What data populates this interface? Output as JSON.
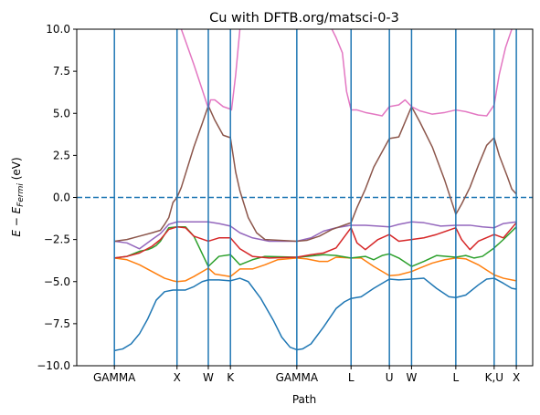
{
  "chart_data": {
    "type": "line",
    "title": "Cu with DFTB.org/matsci-0-3",
    "xlabel": "Path",
    "ylabel_main": "E − E",
    "ylabel_sub": "Fermi",
    "ylabel_unit": " (eV)",
    "ylim": [
      -10.0,
      10.0
    ],
    "xlim": [
      0,
      1
    ],
    "yticks": [
      "−10.0",
      "−7.5",
      "−5.0",
      "−2.5",
      "0.0",
      "2.5",
      "5.0",
      "7.5",
      "10.0"
    ],
    "ytick_values": [
      -10,
      -7.5,
      -5,
      -2.5,
      0,
      2.5,
      5,
      7.5,
      10
    ],
    "kpoint_labels": [
      "GAMMA",
      "X",
      "W",
      "K",
      "GAMMA",
      "L",
      "U",
      "W",
      "L",
      "K,U",
      "X"
    ],
    "kpoint_positions": [
      0.0,
      0.1497,
      0.2245,
      0.2774,
      0.4361,
      0.5658,
      0.6574,
      0.7104,
      0.8162,
      0.9079,
      0.9609
    ],
    "fermi_level": 0.0,
    "colors": {
      "vertical_lines": "#1f77b4",
      "fermi_line": "#1f77b4",
      "bands": [
        "#1f77b4",
        "#ff7f0e",
        "#2ca02c",
        "#d62728",
        "#9467bd",
        "#8c564b",
        "#e377c2"
      ]
    },
    "series": [
      {
        "points": [
          [
            0.0,
            -9.1
          ],
          [
            0.02,
            -9.0
          ],
          [
            0.04,
            -8.7
          ],
          [
            0.06,
            -8.1
          ],
          [
            0.08,
            -7.2
          ],
          [
            0.1,
            -6.1
          ],
          [
            0.12,
            -5.6
          ],
          [
            0.14,
            -5.5
          ],
          [
            0.1497,
            -5.5
          ],
          [
            0.17,
            -5.5
          ],
          [
            0.19,
            -5.3
          ],
          [
            0.21,
            -5.0
          ],
          [
            0.2245,
            -4.9
          ],
          [
            0.25,
            -4.9
          ],
          [
            0.2774,
            -4.95
          ],
          [
            0.3,
            -4.8
          ],
          [
            0.32,
            -5.0
          ],
          [
            0.35,
            -6.0
          ],
          [
            0.38,
            -7.3
          ],
          [
            0.4,
            -8.3
          ],
          [
            0.42,
            -8.9
          ],
          [
            0.4361,
            -9.05
          ],
          [
            0.45,
            -9.0
          ],
          [
            0.47,
            -8.7
          ],
          [
            0.5,
            -7.7
          ],
          [
            0.53,
            -6.6
          ],
          [
            0.55,
            -6.2
          ],
          [
            0.5658,
            -6.0
          ],
          [
            0.59,
            -5.9
          ],
          [
            0.62,
            -5.4
          ],
          [
            0.6574,
            -4.85
          ],
          [
            0.68,
            -4.9
          ],
          [
            0.7104,
            -4.85
          ],
          [
            0.74,
            -4.8
          ],
          [
            0.77,
            -5.4
          ],
          [
            0.8,
            -5.9
          ],
          [
            0.8162,
            -5.95
          ],
          [
            0.84,
            -5.8
          ],
          [
            0.87,
            -5.2
          ],
          [
            0.89,
            -4.85
          ],
          [
            0.9079,
            -4.8
          ],
          [
            0.93,
            -5.1
          ],
          [
            0.95,
            -5.4
          ],
          [
            0.9609,
            -5.45
          ]
        ]
      },
      {
        "points": [
          [
            0.0,
            -3.6
          ],
          [
            0.03,
            -3.7
          ],
          [
            0.06,
            -4.0
          ],
          [
            0.09,
            -4.4
          ],
          [
            0.12,
            -4.8
          ],
          [
            0.14,
            -4.95
          ],
          [
            0.1497,
            -5.0
          ],
          [
            0.17,
            -4.95
          ],
          [
            0.19,
            -4.7
          ],
          [
            0.2245,
            -4.2
          ],
          [
            0.24,
            -4.55
          ],
          [
            0.2774,
            -4.7
          ],
          [
            0.3,
            -4.25
          ],
          [
            0.33,
            -4.25
          ],
          [
            0.36,
            -4.0
          ],
          [
            0.39,
            -3.7
          ],
          [
            0.4361,
            -3.6
          ],
          [
            0.46,
            -3.65
          ],
          [
            0.49,
            -3.8
          ],
          [
            0.51,
            -3.8
          ],
          [
            0.53,
            -3.55
          ],
          [
            0.5658,
            -3.6
          ],
          [
            0.59,
            -3.6
          ],
          [
            0.62,
            -4.1
          ],
          [
            0.6574,
            -4.65
          ],
          [
            0.68,
            -4.6
          ],
          [
            0.7104,
            -4.4
          ],
          [
            0.73,
            -4.2
          ],
          [
            0.76,
            -3.9
          ],
          [
            0.79,
            -3.7
          ],
          [
            0.8162,
            -3.6
          ],
          [
            0.84,
            -3.65
          ],
          [
            0.87,
            -4.0
          ],
          [
            0.9079,
            -4.6
          ],
          [
            0.93,
            -4.8
          ],
          [
            0.9609,
            -4.95
          ]
        ]
      },
      {
        "points": [
          [
            0.0,
            -3.6
          ],
          [
            0.03,
            -3.5
          ],
          [
            0.06,
            -3.2
          ],
          [
            0.08,
            -3.1
          ],
          [
            0.09,
            -3.0
          ],
          [
            0.1,
            -2.85
          ],
          [
            0.11,
            -2.6
          ],
          [
            0.13,
            -1.8
          ],
          [
            0.1497,
            -1.75
          ],
          [
            0.17,
            -1.75
          ],
          [
            0.19,
            -2.3
          ],
          [
            0.2245,
            -4.1
          ],
          [
            0.25,
            -3.5
          ],
          [
            0.2774,
            -3.4
          ],
          [
            0.3,
            -4.0
          ],
          [
            0.33,
            -3.7
          ],
          [
            0.36,
            -3.5
          ],
          [
            0.4361,
            -3.55
          ],
          [
            0.46,
            -3.5
          ],
          [
            0.5,
            -3.4
          ],
          [
            0.53,
            -3.45
          ],
          [
            0.5658,
            -3.6
          ],
          [
            0.6,
            -3.5
          ],
          [
            0.62,
            -3.7
          ],
          [
            0.64,
            -3.45
          ],
          [
            0.6574,
            -3.35
          ],
          [
            0.68,
            -3.6
          ],
          [
            0.7104,
            -4.1
          ],
          [
            0.74,
            -3.8
          ],
          [
            0.77,
            -3.45
          ],
          [
            0.8162,
            -3.55
          ],
          [
            0.84,
            -3.45
          ],
          [
            0.86,
            -3.6
          ],
          [
            0.88,
            -3.5
          ],
          [
            0.9079,
            -3.0
          ],
          [
            0.93,
            -2.5
          ],
          [
            0.9609,
            -1.75
          ]
        ]
      },
      {
        "points": [
          [
            0.0,
            -3.6
          ],
          [
            0.03,
            -3.5
          ],
          [
            0.06,
            -3.3
          ],
          [
            0.09,
            -2.9
          ],
          [
            0.11,
            -2.5
          ],
          [
            0.13,
            -1.9
          ],
          [
            0.1497,
            -1.75
          ],
          [
            0.17,
            -1.8
          ],
          [
            0.19,
            -2.3
          ],
          [
            0.2245,
            -2.6
          ],
          [
            0.25,
            -2.4
          ],
          [
            0.2774,
            -2.4
          ],
          [
            0.3,
            -3.05
          ],
          [
            0.33,
            -3.5
          ],
          [
            0.37,
            -3.6
          ],
          [
            0.4361,
            -3.55
          ],
          [
            0.47,
            -3.4
          ],
          [
            0.5,
            -3.3
          ],
          [
            0.53,
            -3.0
          ],
          [
            0.5658,
            -1.8
          ],
          [
            0.58,
            -2.7
          ],
          [
            0.6,
            -3.1
          ],
          [
            0.63,
            -2.5
          ],
          [
            0.6574,
            -2.2
          ],
          [
            0.68,
            -2.6
          ],
          [
            0.7104,
            -2.5
          ],
          [
            0.74,
            -2.4
          ],
          [
            0.77,
            -2.2
          ],
          [
            0.8162,
            -1.8
          ],
          [
            0.83,
            -2.5
          ],
          [
            0.85,
            -3.1
          ],
          [
            0.87,
            -2.6
          ],
          [
            0.9079,
            -2.2
          ],
          [
            0.93,
            -2.4
          ],
          [
            0.9609,
            -1.5
          ]
        ]
      },
      {
        "points": [
          [
            0.0,
            -2.6
          ],
          [
            0.03,
            -2.7
          ],
          [
            0.06,
            -3.05
          ],
          [
            0.09,
            -2.5
          ],
          [
            0.11,
            -2.15
          ],
          [
            0.13,
            -1.6
          ],
          [
            0.1497,
            -1.45
          ],
          [
            0.18,
            -1.45
          ],
          [
            0.21,
            -1.45
          ],
          [
            0.2245,
            -1.45
          ],
          [
            0.25,
            -1.55
          ],
          [
            0.2774,
            -1.7
          ],
          [
            0.3,
            -2.1
          ],
          [
            0.33,
            -2.4
          ],
          [
            0.37,
            -2.6
          ],
          [
            0.4361,
            -2.6
          ],
          [
            0.47,
            -2.4
          ],
          [
            0.5,
            -2.0
          ],
          [
            0.53,
            -1.8
          ],
          [
            0.5658,
            -1.65
          ],
          [
            0.6,
            -1.65
          ],
          [
            0.63,
            -1.7
          ],
          [
            0.6574,
            -1.75
          ],
          [
            0.68,
            -1.6
          ],
          [
            0.7104,
            -1.45
          ],
          [
            0.74,
            -1.5
          ],
          [
            0.78,
            -1.7
          ],
          [
            0.8162,
            -1.65
          ],
          [
            0.85,
            -1.65
          ],
          [
            0.88,
            -1.75
          ],
          [
            0.9079,
            -1.8
          ],
          [
            0.93,
            -1.55
          ],
          [
            0.9609,
            -1.45
          ]
        ]
      },
      {
        "points": [
          [
            0.0,
            -2.6
          ],
          [
            0.03,
            -2.5
          ],
          [
            0.06,
            -2.3
          ],
          [
            0.09,
            -2.1
          ],
          [
            0.11,
            -1.95
          ],
          [
            0.12,
            -1.6
          ],
          [
            0.13,
            -1.2
          ],
          [
            0.14,
            -0.3
          ],
          [
            0.1497,
            0.0
          ],
          [
            0.16,
            0.6
          ],
          [
            0.17,
            1.4
          ],
          [
            0.19,
            3.0
          ],
          [
            0.21,
            4.4
          ],
          [
            0.2245,
            5.45
          ],
          [
            0.24,
            4.6
          ],
          [
            0.26,
            3.7
          ],
          [
            0.2774,
            3.55
          ],
          [
            0.29,
            1.5
          ],
          [
            0.3,
            0.4
          ],
          [
            0.32,
            -1.2
          ],
          [
            0.34,
            -2.1
          ],
          [
            0.36,
            -2.5
          ],
          [
            0.4361,
            -2.6
          ],
          [
            0.46,
            -2.55
          ],
          [
            0.49,
            -2.3
          ],
          [
            0.52,
            -1.9
          ],
          [
            0.5658,
            -1.5
          ],
          [
            0.58,
            -0.6
          ],
          [
            0.6,
            0.5
          ],
          [
            0.62,
            1.8
          ],
          [
            0.6574,
            3.5
          ],
          [
            0.68,
            3.6
          ],
          [
            0.7104,
            5.4
          ],
          [
            0.73,
            4.5
          ],
          [
            0.76,
            3.0
          ],
          [
            0.79,
            1.0
          ],
          [
            0.8162,
            -1.0
          ],
          [
            0.83,
            -0.4
          ],
          [
            0.85,
            0.6
          ],
          [
            0.87,
            1.9
          ],
          [
            0.89,
            3.1
          ],
          [
            0.9079,
            3.55
          ],
          [
            0.92,
            2.5
          ],
          [
            0.94,
            1.2
          ],
          [
            0.95,
            0.5
          ],
          [
            0.9609,
            0.2
          ]
        ]
      },
      {
        "points": [
          [
            0.1497,
            11.5
          ],
          [
            0.16,
            10.0
          ],
          [
            0.17,
            9.3
          ],
          [
            0.19,
            7.9
          ],
          [
            0.21,
            6.4
          ],
          [
            0.2245,
            5.3
          ],
          [
            0.23,
            5.8
          ],
          [
            0.24,
            5.8
          ],
          [
            0.26,
            5.4
          ],
          [
            0.2774,
            5.25
          ],
          [
            0.28,
            5.2
          ],
          [
            0.29,
            7.3
          ],
          [
            0.3,
            10.0
          ],
          [
            0.31,
            11.5
          ]
        ]
      },
      {
        "points": [
          [
            0.51,
            11.5
          ],
          [
            0.52,
            10.0
          ],
          [
            0.53,
            9.5
          ],
          [
            0.545,
            8.6
          ],
          [
            0.555,
            6.3
          ],
          [
            0.5658,
            5.2
          ],
          [
            0.58,
            5.2
          ],
          [
            0.6,
            5.05
          ],
          [
            0.62,
            4.95
          ],
          [
            0.64,
            4.85
          ],
          [
            0.6574,
            5.4
          ],
          [
            0.68,
            5.5
          ],
          [
            0.695,
            5.8
          ],
          [
            0.7104,
            5.4
          ],
          [
            0.73,
            5.15
          ],
          [
            0.76,
            4.95
          ],
          [
            0.79,
            5.05
          ],
          [
            0.8162,
            5.2
          ],
          [
            0.84,
            5.1
          ],
          [
            0.87,
            4.9
          ],
          [
            0.89,
            4.85
          ],
          [
            0.9079,
            5.5
          ],
          [
            0.92,
            7.3
          ],
          [
            0.935,
            8.9
          ],
          [
            0.95,
            10.0
          ],
          [
            0.96,
            11.5
          ]
        ]
      }
    ]
  }
}
